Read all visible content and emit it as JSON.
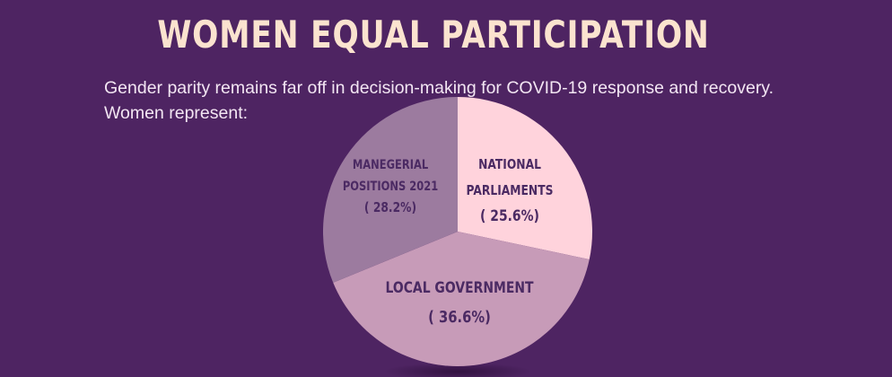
{
  "title": "WOMEN EQUAL PARTICIPATION",
  "subtitle": {
    "line1": "Gender parity remains far off in decision-making for COVID-19 response and recovery.",
    "line2": "Women represent:"
  },
  "colors": {
    "background": "#4e2462",
    "title": "#fbe3cf",
    "label": "#4b2a63"
  },
  "chart_data": {
    "type": "pie",
    "title": "WOMEN EQUAL PARTICIPATION",
    "slices": [
      {
        "name": "NATIONAL PARLIAMENTS",
        "label_lines": [
          "NATIONAL",
          "PARLIAMENTS",
          "( 25.6%)"
        ],
        "value": 25.6,
        "color": "#ffd3dc"
      },
      {
        "name": "LOCAL GOVERNMENT",
        "label_lines": [
          "LOCAL GOVERNMENT",
          "( 36.6%)"
        ],
        "value": 36.6,
        "color": "#c79bb8"
      },
      {
        "name": "MANEGERIAL POSITIONS 2021",
        "label_lines": [
          "MANEGERIAL",
          "POSITIONS 2021",
          "( 28.2%)"
        ],
        "value": 28.2,
        "color": "#9c7b9f"
      }
    ]
  }
}
